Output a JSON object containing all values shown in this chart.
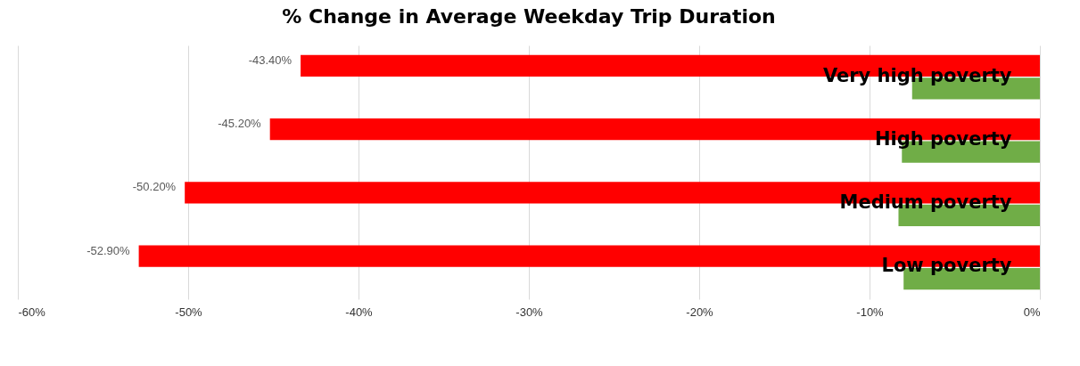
{
  "chart_data": {
    "type": "bar",
    "orientation": "horizontal",
    "title": "% Change in Average Weekday Trip Duration",
    "categories": [
      "Very high poverty",
      "High poverty",
      "Medium poverty",
      "Low poverty"
    ],
    "series": [
      {
        "color": "#ff0000",
        "values": [
          -43.4,
          -45.2,
          -50.2,
          -52.9
        ],
        "value_labels": [
          "-43.40%",
          "-45.20%",
          "-50.20%",
          "-52.90%"
        ]
      },
      {
        "color": "#70ad47",
        "values": [
          -7.5,
          -8.1,
          -8.3,
          -8.0
        ]
      }
    ],
    "xlim": [
      -60,
      0
    ],
    "xticks": [
      {
        "value": -60,
        "label": "-60%"
      },
      {
        "value": -50,
        "label": "-50%"
      },
      {
        "value": -40,
        "label": "-40%"
      },
      {
        "value": -30,
        "label": "-30%"
      },
      {
        "value": -20,
        "label": "-20%"
      },
      {
        "value": -10,
        "label": "-10%"
      },
      {
        "value": 0,
        "label": "0%"
      }
    ],
    "grid": "x"
  }
}
